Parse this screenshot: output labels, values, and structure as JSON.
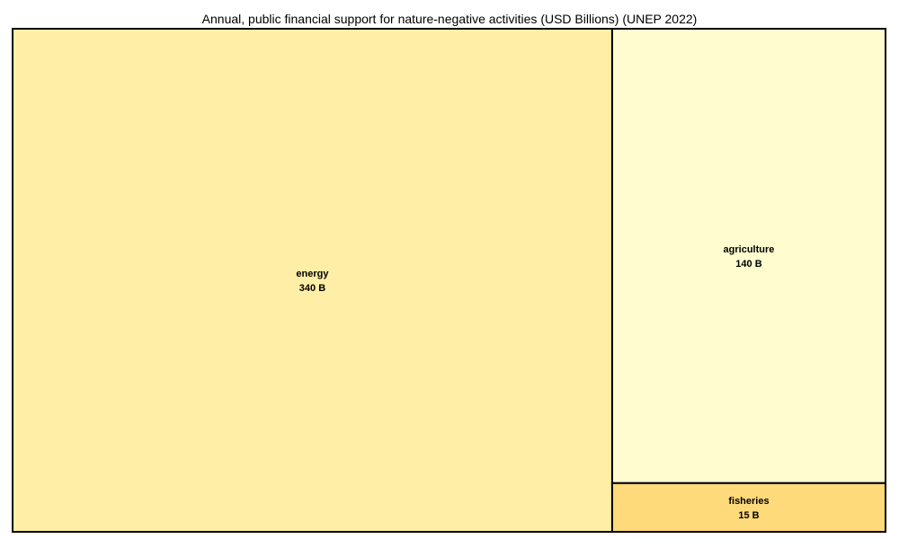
{
  "chart_data": {
    "type": "treemap",
    "title": "Annual, public financial support for nature-negative activities (USD Billions) (UNEP 2022)",
    "value_suffix": " B",
    "items": [
      {
        "label": "energy",
        "value": 340,
        "color": "#FFEEA6"
      },
      {
        "label": "agriculture",
        "value": 140,
        "color": "#FFFDD0"
      },
      {
        "label": "fisheries",
        "value": 15,
        "color": "#FFDA7A"
      }
    ]
  }
}
